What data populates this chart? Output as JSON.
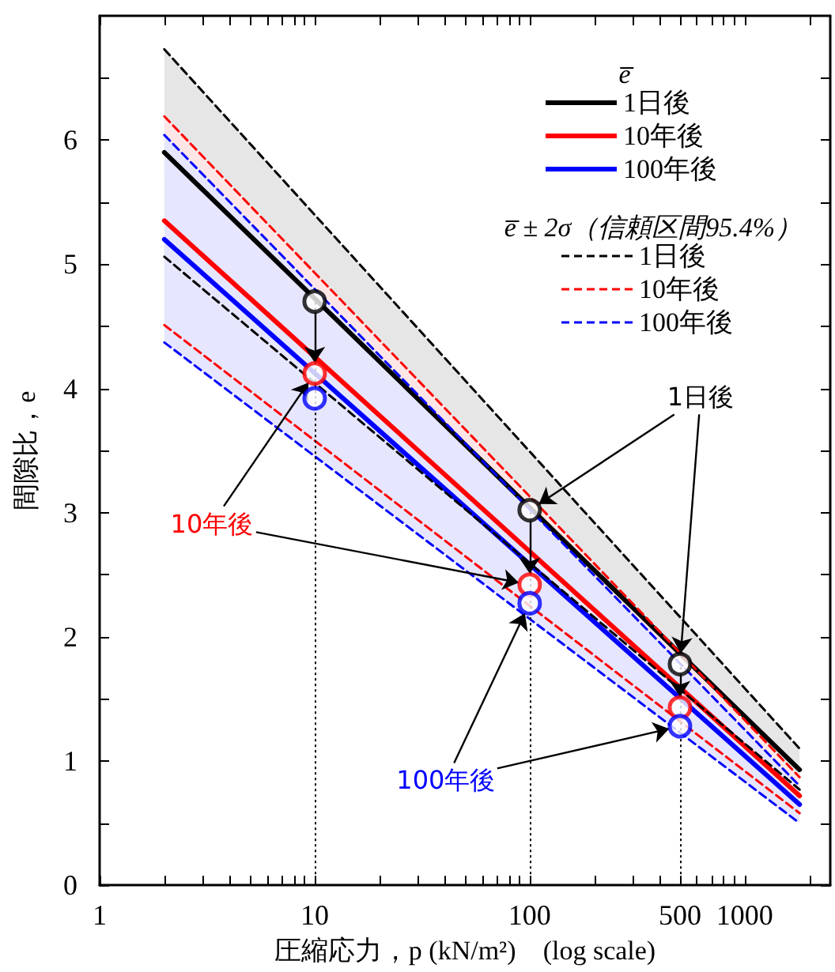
{
  "chart_data": {
    "type": "line",
    "xlabel": "圧縮応力，p (kN/m²)　(log scale)",
    "ylabel": "間隙比，e",
    "legend_title": "e̅",
    "legend": "top right",
    "log": "x",
    "grid": false,
    "xlim": [
      1,
      2500
    ],
    "ylim": [
      0,
      7
    ],
    "xticks": [
      1,
      {
        "value": 2,
        "label": null
      },
      {
        "value": 3,
        "label": null
      },
      {
        "value": 4,
        "label": null
      },
      {
        "value": 5,
        "label": null
      },
      {
        "value": 6,
        "label": null
      },
      {
        "value": 7,
        "label": null
      },
      {
        "value": 8,
        "label": null
      },
      {
        "value": 9,
        "label": null
      },
      10,
      {
        "value": 20,
        "label": null
      },
      {
        "value": 30,
        "label": null
      },
      {
        "value": 40,
        "label": null
      },
      {
        "value": 50,
        "label": null
      },
      {
        "value": 60,
        "label": null
      },
      {
        "value": 70,
        "label": null
      },
      {
        "value": 80,
        "label": null
      },
      {
        "value": 90,
        "label": null
      },
      100,
      {
        "value": 200,
        "label": null
      },
      {
        "value": 300,
        "label": null
      },
      {
        "value": 400,
        "label": null
      },
      500,
      {
        "value": 600,
        "label": null
      },
      {
        "value": 700,
        "label": null
      },
      {
        "value": 800,
        "label": null
      },
      {
        "value": 900,
        "label": null
      },
      1000,
      {
        "value": 2000,
        "label": null
      }
    ],
    "yticks": [
      0,
      {
        "value": 0.5,
        "label": null
      },
      1,
      {
        "value": 1.5,
        "label": null
      },
      2,
      {
        "value": 2.5,
        "label": null
      },
      3,
      {
        "value": 3.5,
        "label": null
      },
      4,
      {
        "value": 4.5,
        "label": null
      },
      5,
      {
        "value": 5.5,
        "label": null
      },
      6,
      {
        "value": 6.5,
        "label": null
      }
    ],
    "series": [
      {
        "name": "1日後",
        "color": "#000000",
        "line_style": "solid",
        "marker": "none",
        "x": [
          2,
          1800
        ],
        "values": [
          5.9,
          0.93
        ],
        "lower": [
          5.06,
          0.77
        ],
        "upper": [
          6.73,
          1.1
        ]
      },
      {
        "name": "10年後",
        "color": "#ff0000",
        "line_style": "solid",
        "marker": "none",
        "x": [
          2,
          1800
        ],
        "values": [
          5.35,
          0.72
        ],
        "lower": [
          4.51,
          0.58
        ],
        "upper": [
          6.19,
          0.87
        ]
      },
      {
        "name": "100年後",
        "color": "#0000ff",
        "line_style": "solid",
        "marker": "none",
        "x": [
          2,
          1800
        ],
        "values": [
          5.2,
          0.65
        ],
        "lower": [
          4.37,
          0.5
        ],
        "upper": [
          6.04,
          0.8
        ]
      },
      {
        "name": "1日後",
        "color": "#000000",
        "line_style": "dashed",
        "marker": "none",
        "x": [
          2,
          1800
        ],
        "values": [
          6.73,
          1.1
        ]
      },
      {
        "color": "#000000",
        "line_style": "dashed",
        "marker": "none",
        "x": [
          2,
          1800
        ],
        "values": [
          5.06,
          0.77
        ]
      },
      {
        "name": "10年後",
        "color": "#ff0000",
        "line_style": "dashed",
        "marker": "none",
        "x": [
          2,
          1800
        ],
        "values": [
          6.19,
          0.87
        ]
      },
      {
        "color": "#ff0000",
        "line_style": "dashed",
        "marker": "none",
        "x": [
          2,
          1800
        ],
        "values": [
          4.51,
          0.58
        ]
      },
      {
        "name": "100年後",
        "color": "#0000ff",
        "line_style": "dashed",
        "marker": "none",
        "x": [
          2,
          1800
        ],
        "values": [
          6.04,
          0.8
        ]
      },
      {
        "color": "#0000ff",
        "line_style": "dashed",
        "marker": "none",
        "x": [
          2,
          1800
        ],
        "values": [
          4.37,
          0.5
        ]
      },
      {
        "type": "scatter",
        "color": "#000000",
        "marker": "circle",
        "x": [
          10,
          100,
          500
        ],
        "values": [
          4.7,
          3.02,
          1.78
        ]
      },
      {
        "type": "scatter",
        "color": "#ff0000",
        "marker": "circle",
        "x": [
          10,
          100,
          500
        ],
        "values": [
          4.12,
          2.42,
          1.43
        ]
      },
      {
        "type": "scatter",
        "color": "#0000ff",
        "marker": "circle",
        "x": [
          10,
          100,
          500
        ],
        "values": [
          3.92,
          2.27,
          1.28
        ]
      }
    ],
    "ref_lines": [
      {
        "axis": "x",
        "value": 10,
        "color": "#000000",
        "line_style": "dotted"
      },
      {
        "axis": "x",
        "value": 100,
        "color": "#000000",
        "line_style": "dotted"
      },
      {
        "axis": "x",
        "value": 500,
        "color": "#000000",
        "line_style": "dotted"
      }
    ],
    "annotations": [
      "e̅ ± 2σ（信頼区間95.4%）",
      {
        "text": "1日後",
        "x": 500,
        "y": 1.78
      },
      {
        "text": "10年後",
        "x": 10,
        "y": 4.12
      },
      {
        "text": "100年後",
        "x": 100,
        "y": 2.27
      }
    ]
  }
}
